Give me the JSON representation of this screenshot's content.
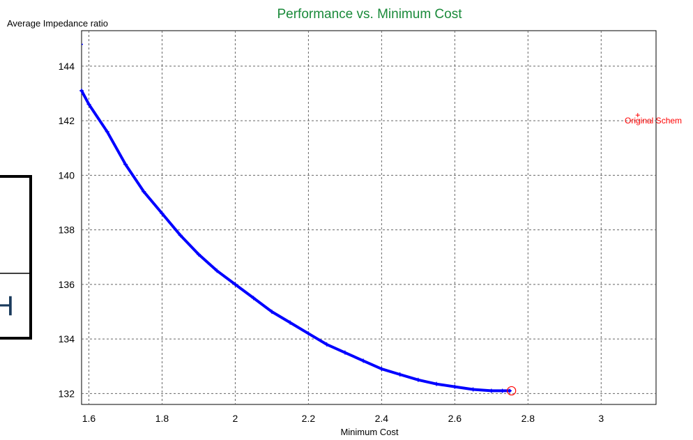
{
  "chart_data": {
    "type": "scatter",
    "title": "Performance vs. Minimum Cost",
    "xlabel": "Minimum Cost",
    "ylabel": "Average Impedance ratio",
    "xlim": [
      1.58,
      3.15
    ],
    "ylim": [
      131.6,
      145.3
    ],
    "xticks": [
      1.6,
      1.8,
      2,
      2.2,
      2.4,
      2.6,
      2.8,
      3
    ],
    "yticks": [
      132,
      134,
      136,
      138,
      140,
      142,
      144
    ],
    "xtick_labels": [
      "1.6",
      "1.8",
      "2",
      "2.2",
      "2.4",
      "2.6",
      "2.8",
      "3"
    ],
    "ytick_labels": [
      "132",
      "134",
      "136",
      "138",
      "140",
      "142",
      "144"
    ],
    "grid": true,
    "series": [
      {
        "color": "#0000ff",
        "x": [
          1.58,
          1.6,
          1.65,
          1.7,
          1.75,
          1.8,
          1.85,
          1.9,
          1.95,
          2.0,
          2.05,
          2.1,
          2.15,
          2.2,
          2.25,
          2.3,
          2.35,
          2.4,
          2.45,
          2.5,
          2.55,
          2.6,
          2.65,
          2.7,
          2.73,
          2.75
        ],
        "y": [
          143.1,
          142.6,
          141.6,
          140.4,
          139.4,
          138.6,
          137.8,
          137.1,
          136.5,
          136.0,
          135.5,
          135.0,
          134.6,
          134.2,
          133.8,
          133.5,
          133.2,
          132.9,
          132.7,
          132.5,
          132.35,
          132.25,
          132.15,
          132.1,
          132.1,
          132.1
        ]
      }
    ],
    "annotations": [
      {
        "text": "Original Schem",
        "x": 3.1,
        "y": 142.0,
        "color": "#ff0000"
      }
    ],
    "highlight_point": {
      "x": 2.755,
      "y": 132.1,
      "color": "#ff0000"
    }
  },
  "left_panel": {
    "letter": "H",
    "letter_color": "#1a3a5c"
  },
  "colors": {
    "title": "#1a8a3a",
    "series": "#0000ff",
    "annotation": "#ff0000"
  }
}
